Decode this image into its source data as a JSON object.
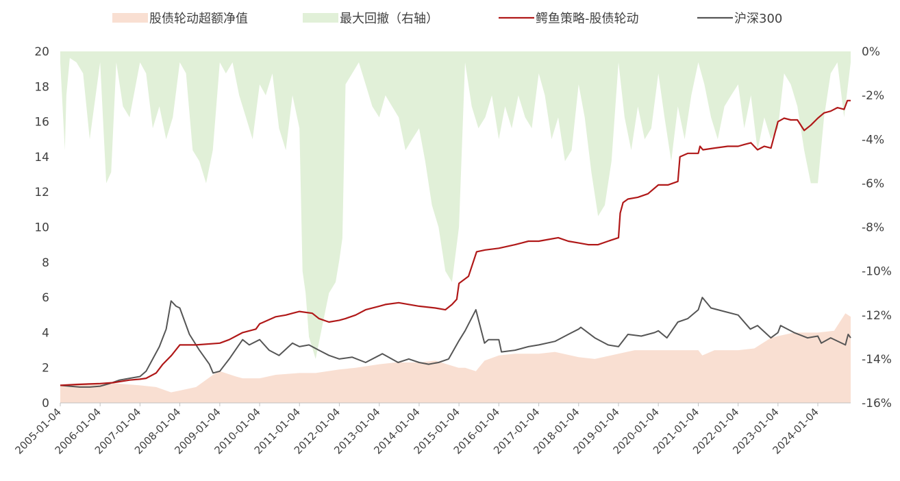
{
  "chart_data": {
    "type": "line",
    "legend": {
      "placement": "top",
      "items": [
        {
          "label": "股债轮动超额净值",
          "kind": "area",
          "color": "#f9dfd2"
        },
        {
          "label": "最大回撤（右轴）",
          "kind": "area",
          "color": "#e1f0d8"
        },
        {
          "label": "鳄鱼策略-股债轮动",
          "kind": "line",
          "color": "#b01818"
        },
        {
          "label": "沪深300",
          "kind": "line",
          "color": "#555555"
        }
      ]
    },
    "x_axis": {
      "type": "date",
      "range": [
        "2005-01-04",
        "2024-10-31"
      ],
      "tick_labels": [
        "2005-01-04",
        "2006-01-04",
        "2007-01-04",
        "2008-01-04",
        "2009-01-04",
        "2010-01-04",
        "2011-01-04",
        "2012-01-04",
        "2013-01-04",
        "2014-01-04",
        "2015-01-04",
        "2016-01-04",
        "2017-01-04",
        "2018-01-04",
        "2019-01-04",
        "2020-01-04",
        "2021-01-04",
        "2022-01-04",
        "2023-01-04",
        "2024-01-04"
      ]
    },
    "y_left": {
      "range": [
        0,
        20
      ],
      "tick_labels": [
        "0",
        "2",
        "4",
        "6",
        "8",
        "10",
        "12",
        "14",
        "16",
        "18",
        "20"
      ]
    },
    "y_right": {
      "range": [
        -16,
        0
      ],
      "tick_labels": [
        "0%",
        "-2%",
        "-4%",
        "-6%",
        "-8%",
        "-10%",
        "-12%",
        "-14%",
        "-16%"
      ]
    },
    "grid": false,
    "series": [
      {
        "name": "鳄鱼策略-股债轮动",
        "axis": "left",
        "x": [
          "2005-01-04",
          "2005-06-01",
          "2006-01-04",
          "2006-05-01",
          "2006-10-01",
          "2007-01-04",
          "2007-03-01",
          "2007-06-01",
          "2007-08-01",
          "2007-10-20",
          "2008-01-04",
          "2008-06-01",
          "2009-01-04",
          "2009-04-01",
          "2009-06-01",
          "2009-08-01",
          "2009-12-01",
          "2010-01-04",
          "2010-06-01",
          "2010-09-01",
          "2010-11-01",
          "2011-01-04",
          "2011-05-01",
          "2011-07-01",
          "2011-10-01",
          "2012-01-04",
          "2012-03-01",
          "2012-06-01",
          "2012-09-01",
          "2013-01-04",
          "2013-03-01",
          "2013-07-01",
          "2014-01-04",
          "2014-06-01",
          "2014-09-01",
          "2014-11-01",
          "2014-12-15",
          "2015-01-04",
          "2015-04-01",
          "2015-06-15",
          "2015-09-01",
          "2016-01-04",
          "2016-06-01",
          "2016-10-01",
          "2017-01-04",
          "2017-04-01",
          "2017-07-01",
          "2017-10-01",
          "2018-01-04",
          "2018-04-01",
          "2018-07-01",
          "2018-10-01",
          "2019-01-04",
          "2019-01-20",
          "2019-02-15",
          "2019-04-01",
          "2019-07-01",
          "2019-10-01",
          "2020-01-04",
          "2020-04-01",
          "2020-07-01",
          "2020-07-20",
          "2020-10-01",
          "2021-01-04",
          "2021-01-20",
          "2021-02-15",
          "2021-06-01",
          "2021-10-01",
          "2022-01-04",
          "2022-03-01",
          "2022-05-01",
          "2022-07-01",
          "2022-09-01",
          "2022-11-01",
          "2023-01-04",
          "2023-03-01",
          "2023-05-01",
          "2023-07-01",
          "2023-09-01",
          "2023-11-01",
          "2024-01-04",
          "2024-03-01",
          "2024-05-01",
          "2024-07-01",
          "2024-09-01",
          "2024-10-01",
          "2024-10-31"
        ],
        "values": [
          1.0,
          1.05,
          1.1,
          1.15,
          1.3,
          1.35,
          1.4,
          1.7,
          2.2,
          2.7,
          3.3,
          3.3,
          3.4,
          3.6,
          3.8,
          4.0,
          4.2,
          4.5,
          4.9,
          5.0,
          5.1,
          5.2,
          5.1,
          4.8,
          4.6,
          4.7,
          4.8,
          5.0,
          5.3,
          5.5,
          5.6,
          5.7,
          5.5,
          5.4,
          5.3,
          5.6,
          5.9,
          6.8,
          7.2,
          8.6,
          8.7,
          8.8,
          9.0,
          9.2,
          9.2,
          9.3,
          9.4,
          9.2,
          9.1,
          9.0,
          9.0,
          9.2,
          9.4,
          10.8,
          11.4,
          11.6,
          11.7,
          11.9,
          12.4,
          12.4,
          12.6,
          14.0,
          14.2,
          14.2,
          14.6,
          14.4,
          14.5,
          14.6,
          14.6,
          14.7,
          14.8,
          14.4,
          14.6,
          14.5,
          16.0,
          16.2,
          16.1,
          16.1,
          15.5,
          15.8,
          16.2,
          16.5,
          16.6,
          16.8,
          16.7,
          17.2,
          17.2
        ]
      },
      {
        "name": "沪深300",
        "axis": "left",
        "x": [
          "2005-01-04",
          "2005-04-01",
          "2005-07-01",
          "2005-10-01",
          "2006-01-04",
          "2006-04-01",
          "2006-07-01",
          "2006-10-01",
          "2007-01-04",
          "2007-03-01",
          "2007-05-01",
          "2007-07-01",
          "2007-09-01",
          "2007-10-16",
          "2007-12-01",
          "2008-01-04",
          "2008-04-01",
          "2008-07-01",
          "2008-10-01",
          "2008-11-04",
          "2009-01-04",
          "2009-04-01",
          "2009-08-01",
          "2009-10-01",
          "2010-01-04",
          "2010-04-01",
          "2010-07-01",
          "2010-11-01",
          "2011-01-04",
          "2011-04-01",
          "2011-07-01",
          "2011-10-01",
          "2012-01-04",
          "2012-05-01",
          "2012-09-01",
          "2013-01-04",
          "2013-02-01",
          "2013-06-25",
          "2013-10-01",
          "2014-01-04",
          "2014-04-01",
          "2014-07-01",
          "2014-10-01",
          "2014-12-31",
          "2015-03-01",
          "2015-06-08",
          "2015-08-26",
          "2015-10-01",
          "2016-01-04",
          "2016-01-28",
          "2016-06-01",
          "2016-10-01",
          "2017-01-04",
          "2017-06-01",
          "2017-10-01",
          "2018-01-04",
          "2018-01-24",
          "2018-06-01",
          "2018-10-01",
          "2019-01-04",
          "2019-04-01",
          "2019-08-01",
          "2019-12-01",
          "2020-01-04",
          "2020-03-23",
          "2020-07-01",
          "2020-10-01",
          "2021-01-04",
          "2021-02-10",
          "2021-05-01",
          "2021-09-01",
          "2022-01-04",
          "2022-04-26",
          "2022-07-01",
          "2022-10-31",
          "2023-01-04",
          "2023-01-28",
          "2023-06-01",
          "2023-10-01",
          "2024-01-04",
          "2024-02-05",
          "2024-05-01",
          "2024-09-13",
          "2024-10-08",
          "2024-10-31"
        ],
        "values": [
          1.0,
          0.95,
          0.9,
          0.9,
          0.95,
          1.1,
          1.3,
          1.4,
          1.5,
          1.8,
          2.5,
          3.2,
          4.2,
          5.8,
          5.5,
          5.4,
          3.9,
          3.0,
          2.2,
          1.7,
          1.8,
          2.5,
          3.6,
          3.3,
          3.6,
          3.0,
          2.7,
          3.4,
          3.2,
          3.3,
          3.0,
          2.7,
          2.5,
          2.6,
          2.3,
          2.7,
          2.8,
          2.3,
          2.5,
          2.3,
          2.2,
          2.3,
          2.5,
          3.5,
          4.1,
          5.3,
          3.4,
          3.6,
          3.6,
          2.9,
          3.0,
          3.2,
          3.3,
          3.5,
          3.9,
          4.2,
          4.3,
          3.7,
          3.3,
          3.2,
          3.9,
          3.8,
          4.0,
          4.1,
          3.7,
          4.6,
          4.8,
          5.3,
          6.0,
          5.4,
          5.2,
          5.0,
          4.2,
          4.4,
          3.7,
          4.0,
          4.4,
          4.0,
          3.7,
          3.8,
          3.4,
          3.7,
          3.3,
          3.9,
          3.7
        ]
      },
      {
        "name": "股债轮动超额净值",
        "axis": "left",
        "x": [
          "2005-01-04",
          "2005-06-01",
          "2006-01-04",
          "2006-06-01",
          "2007-01-04",
          "2007-06-01",
          "2007-10-16",
          "2008-01-04",
          "2008-06-01",
          "2008-11-04",
          "2009-01-04",
          "2009-06-01",
          "2009-08-01",
          "2010-01-04",
          "2010-06-01",
          "2011-01-04",
          "2011-06-01",
          "2012-01-04",
          "2012-06-01",
          "2013-01-04",
          "2013-06-01",
          "2014-01-04",
          "2014-06-01",
          "2014-12-31",
          "2015-03-01",
          "2015-06-08",
          "2015-08-26",
          "2016-01-04",
          "2016-06-01",
          "2017-01-04",
          "2017-06-01",
          "2018-01-04",
          "2018-06-01",
          "2019-01-04",
          "2019-06-01",
          "2020-01-04",
          "2020-06-01",
          "2021-01-04",
          "2021-02-10",
          "2021-06-01",
          "2022-01-04",
          "2022-06-01",
          "2022-10-31",
          "2023-01-04",
          "2023-06-01",
          "2024-01-04",
          "2024-06-01",
          "2024-09-13",
          "2024-10-31"
        ],
        "values": [
          1.0,
          1.1,
          1.15,
          1.1,
          1.0,
          0.9,
          0.6,
          0.7,
          0.9,
          1.6,
          1.8,
          1.5,
          1.4,
          1.4,
          1.6,
          1.7,
          1.7,
          1.9,
          2.0,
          2.2,
          2.3,
          2.3,
          2.4,
          2.0,
          2.0,
          1.8,
          2.4,
          2.7,
          2.8,
          2.8,
          2.9,
          2.6,
          2.5,
          2.8,
          3.0,
          3.0,
          3.0,
          3.0,
          2.7,
          3.0,
          3.0,
          3.1,
          3.7,
          3.8,
          4.0,
          4.0,
          4.1,
          5.1,
          4.9
        ]
      },
      {
        "name": "最大回撤（右轴）",
        "axis": "right",
        "x": [
          "2005-01-04",
          "2005-02-15",
          "2005-03-01",
          "2005-04-01",
          "2005-06-01",
          "2005-08-01",
          "2005-10-01",
          "2006-01-04",
          "2006-03-01",
          "2006-04-15",
          "2006-06-01",
          "2006-08-01",
          "2006-10-01",
          "2007-01-04",
          "2007-03-01",
          "2007-05-01",
          "2007-07-01",
          "2007-09-01",
          "2007-11-01",
          "2008-01-04",
          "2008-03-01",
          "2008-05-01",
          "2008-07-01",
          "2008-09-01",
          "2008-11-01",
          "2009-01-04",
          "2009-03-01",
          "2009-05-01",
          "2009-07-01",
          "2009-09-01",
          "2009-11-01",
          "2010-01-04",
          "2010-03-01",
          "2010-05-01",
          "2010-07-01",
          "2010-09-01",
          "2010-11-01",
          "2011-01-04",
          "2011-02-01",
          "2011-03-01",
          "2011-04-01",
          "2011-06-01",
          "2011-08-01",
          "2011-10-01",
          "2011-12-01",
          "2012-01-04",
          "2012-02-01",
          "2012-03-01",
          "2012-05-01",
          "2012-07-01",
          "2012-09-01",
          "2012-11-01",
          "2013-01-04",
          "2013-03-01",
          "2013-05-01",
          "2013-07-01",
          "2013-09-01",
          "2013-11-01",
          "2014-01-04",
          "2014-03-01",
          "2014-05-01",
          "2014-07-01",
          "2014-09-01",
          "2014-11-01",
          "2015-01-04",
          "2015-03-01",
          "2015-05-01",
          "2015-07-01",
          "2015-09-01",
          "2015-11-01",
          "2016-01-04",
          "2016-03-01",
          "2016-05-01",
          "2016-07-01",
          "2016-09-01",
          "2016-11-01",
          "2017-01-04",
          "2017-03-01",
          "2017-05-01",
          "2017-07-01",
          "2017-09-01",
          "2017-11-01",
          "2018-01-04",
          "2018-03-01",
          "2018-05-01",
          "2018-07-01",
          "2018-09-01",
          "2018-11-01",
          "2019-01-04",
          "2019-03-01",
          "2019-05-01",
          "2019-07-01",
          "2019-09-01",
          "2019-11-01",
          "2020-01-04",
          "2020-03-01",
          "2020-05-01",
          "2020-07-01",
          "2020-09-01",
          "2020-11-01",
          "2021-01-04",
          "2021-03-01",
          "2021-05-01",
          "2021-07-01",
          "2021-09-01",
          "2021-11-01",
          "2022-01-04",
          "2022-03-01",
          "2022-05-01",
          "2022-07-01",
          "2022-09-01",
          "2022-11-01",
          "2023-01-04",
          "2023-03-01",
          "2023-05-01",
          "2023-07-01",
          "2023-09-01",
          "2023-11-01",
          "2024-01-04",
          "2024-03-01",
          "2024-05-01",
          "2024-07-01",
          "2024-09-01",
          "2024-10-31"
        ],
        "values": [
          -0.5,
          -4.5,
          -2.0,
          -0.3,
          -0.5,
          -1.0,
          -4.0,
          -0.5,
          -6.0,
          -5.5,
          -0.5,
          -2.5,
          -3.0,
          -0.5,
          -1.0,
          -3.5,
          -2.5,
          -4.0,
          -3.0,
          -0.5,
          -1.0,
          -4.5,
          -5.0,
          -6.0,
          -4.5,
          -0.5,
          -1.0,
          -0.5,
          -2.0,
          -3.0,
          -4.0,
          -1.5,
          -2.0,
          -1.0,
          -3.5,
          -4.5,
          -2.0,
          -3.5,
          -10.0,
          -11.0,
          -13.0,
          -14.0,
          -12.5,
          -11.0,
          -10.5,
          -9.5,
          -8.5,
          -1.5,
          -1.0,
          -0.5,
          -1.5,
          -2.5,
          -3.0,
          -2.0,
          -2.5,
          -3.0,
          -4.5,
          -4.0,
          -3.5,
          -5.0,
          -7.0,
          -8.0,
          -10.0,
          -10.5,
          -8.0,
          -0.5,
          -2.5,
          -3.5,
          -3.0,
          -2.0,
          -4.0,
          -2.5,
          -3.5,
          -2.0,
          -3.0,
          -3.5,
          -1.0,
          -2.0,
          -4.0,
          -3.0,
          -5.0,
          -4.5,
          -1.5,
          -3.0,
          -5.5,
          -7.5,
          -7.0,
          -5.0,
          -0.5,
          -3.0,
          -4.5,
          -2.5,
          -4.0,
          -3.5,
          -1.0,
          -3.0,
          -5.0,
          -2.5,
          -4.0,
          -2.0,
          -0.5,
          -1.5,
          -3.0,
          -4.0,
          -2.5,
          -2.0,
          -1.5,
          -3.5,
          -2.0,
          -4.5,
          -3.0,
          -4.0,
          -3.5,
          -1.0,
          -1.5,
          -2.5,
          -4.5,
          -6.0,
          -6.0,
          -3.0,
          -1.0,
          -0.5,
          -3.0,
          -0.5
        ]
      }
    ]
  }
}
